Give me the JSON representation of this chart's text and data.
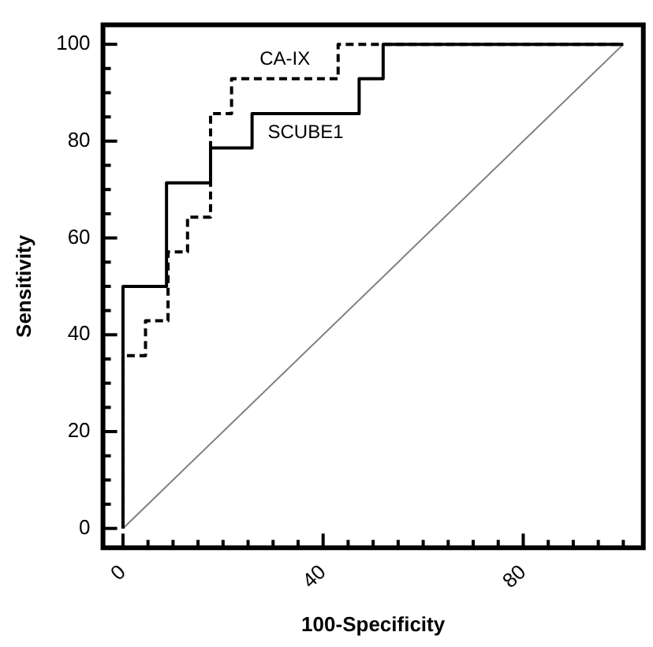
{
  "chart_data": {
    "type": "line",
    "xlabel": "100-Specificity",
    "ylabel": "Sensitivity",
    "xlim": [
      -4,
      104
    ],
    "ylim": [
      -4,
      104
    ],
    "xticks": [
      0,
      {
        "value": 5,
        "label": null
      },
      {
        "value": 10,
        "label": null
      },
      {
        "value": 15,
        "label": null
      },
      {
        "value": 20,
        "label": null
      },
      {
        "value": 25,
        "label": null
      },
      {
        "value": 30,
        "label": null
      },
      {
        "value": 35,
        "label": null
      },
      40,
      {
        "value": 45,
        "label": null
      },
      {
        "value": 50,
        "label": null
      },
      {
        "value": 55,
        "label": null
      },
      {
        "value": 60,
        "label": null
      },
      {
        "value": 65,
        "label": null
      },
      {
        "value": 70,
        "label": null
      },
      {
        "value": 75,
        "label": null
      },
      80,
      {
        "value": 85,
        "label": null
      },
      {
        "value": 90,
        "label": null
      },
      {
        "value": 95,
        "label": null
      },
      {
        "value": 100,
        "label": null
      }
    ],
    "yticks": [
      0,
      {
        "value": 5,
        "label": null
      },
      {
        "value": 10,
        "label": null
      },
      {
        "value": 15,
        "label": null
      },
      20,
      {
        "value": 25,
        "label": null
      },
      {
        "value": 30,
        "label": null
      },
      {
        "value": 35,
        "label": null
      },
      40,
      {
        "value": 45,
        "label": null
      },
      {
        "value": 50,
        "label": null
      },
      {
        "value": 55,
        "label": null
      },
      60,
      {
        "value": 65,
        "label": null
      },
      {
        "value": 70,
        "label": null
      },
      {
        "value": 75,
        "label": null
      },
      80,
      {
        "value": 85,
        "label": null
      },
      {
        "value": 90,
        "label": null
      },
      {
        "value": 95,
        "label": null
      },
      100
    ],
    "grid": false,
    "legend": false,
    "marker": "none",
    "series": [
      {
        "name": "CA-IX",
        "color": "#000000",
        "line_style": "dashed",
        "x": [
          0,
          0,
          4.5,
          4.5,
          9,
          9,
          12.9,
          12.9,
          17.5,
          17.5,
          21.7,
          21.7,
          43,
          43,
          100
        ],
        "values": [
          0,
          35.7,
          35.7,
          42.9,
          42.9,
          57.1,
          57.1,
          64.3,
          64.3,
          85.7,
          85.7,
          92.9,
          92.9,
          100,
          100
        ]
      },
      {
        "name": "SCUBE1",
        "color": "#000000",
        "line_style": "solid",
        "x": [
          0,
          0,
          8.7,
          8.7,
          17.5,
          17.5,
          25.8,
          25.8,
          47.2,
          47.2,
          52,
          52,
          100
        ],
        "values": [
          0,
          50,
          50,
          71.4,
          71.4,
          78.6,
          78.6,
          85.7,
          85.7,
          92.9,
          92.9,
          100,
          100
        ]
      },
      {
        "color": "#808080",
        "line_style": "solid",
        "x": [
          0,
          100
        ],
        "values": [
          0,
          100
        ]
      }
    ]
  }
}
